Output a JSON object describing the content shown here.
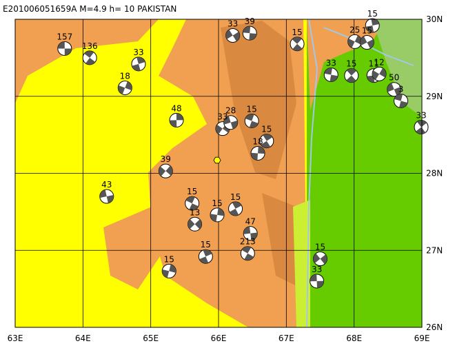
{
  "map": {
    "title": "E201006051659A  M=4.9  h= 10  PAKISTAN",
    "xlim": [
      63,
      69
    ],
    "ylim": [
      26,
      30
    ],
    "xticks": [
      {
        "value": 63,
        "label": "63E"
      },
      {
        "value": 64,
        "label": "64E"
      },
      {
        "value": 65,
        "label": "65E"
      },
      {
        "value": 66,
        "label": "66E"
      },
      {
        "value": 67,
        "label": "67E"
      },
      {
        "value": 68,
        "label": "68E"
      },
      {
        "value": 69,
        "label": "69E"
      }
    ],
    "yticks": [
      {
        "value": 26,
        "label": "26N"
      },
      {
        "value": 27,
        "label": "27N"
      },
      {
        "value": 28,
        "label": "28N"
      },
      {
        "value": 29,
        "label": "29N"
      },
      {
        "value": 30,
        "label": "30N"
      }
    ],
    "epicenter": {
      "lon": 65.98,
      "lat": 28.17
    },
    "events": [
      {
        "lon": 63.73,
        "lat": 29.62,
        "depth": 157
      },
      {
        "lon": 64.1,
        "lat": 29.5,
        "depth": 136
      },
      {
        "lon": 64.82,
        "lat": 29.42,
        "depth": 33
      },
      {
        "lon": 64.62,
        "lat": 29.11,
        "depth": 18
      },
      {
        "lon": 66.21,
        "lat": 29.79,
        "depth": 33
      },
      {
        "lon": 66.46,
        "lat": 29.82,
        "depth": 39
      },
      {
        "lon": 67.16,
        "lat": 29.68,
        "depth": 15
      },
      {
        "lon": 68.27,
        "lat": 29.92,
        "depth": 15
      },
      {
        "lon": 68.01,
        "lat": 29.71,
        "depth": 25
      },
      {
        "lon": 68.19,
        "lat": 29.7,
        "depth": 15
      },
      {
        "lon": 67.66,
        "lat": 29.28,
        "depth": 33
      },
      {
        "lon": 67.96,
        "lat": 29.27,
        "depth": 15
      },
      {
        "lon": 68.29,
        "lat": 29.27,
        "depth": 11
      },
      {
        "lon": 68.37,
        "lat": 29.29,
        "depth": 12
      },
      {
        "lon": 68.59,
        "lat": 29.09,
        "depth": 50
      },
      {
        "lon": 68.69,
        "lat": 28.94,
        "depth": 3
      },
      {
        "lon": 68.99,
        "lat": 28.6,
        "depth": 33
      },
      {
        "lon": 65.38,
        "lat": 28.69,
        "depth": 48
      },
      {
        "lon": 66.06,
        "lat": 28.58,
        "depth": 33
      },
      {
        "lon": 66.18,
        "lat": 28.66,
        "depth": 28
      },
      {
        "lon": 66.49,
        "lat": 28.68,
        "depth": 15
      },
      {
        "lon": 66.71,
        "lat": 28.42,
        "depth": 15
      },
      {
        "lon": 66.58,
        "lat": 28.26,
        "depth": 18
      },
      {
        "lon": 65.22,
        "lat": 28.03,
        "depth": 39
      },
      {
        "lon": 64.35,
        "lat": 27.7,
        "depth": 43
      },
      {
        "lon": 65.61,
        "lat": 27.61,
        "depth": 15
      },
      {
        "lon": 66.25,
        "lat": 27.54,
        "depth": 15
      },
      {
        "lon": 65.98,
        "lat": 27.46,
        "depth": 15
      },
      {
        "lon": 65.65,
        "lat": 27.34,
        "depth": 13
      },
      {
        "lon": 66.47,
        "lat": 27.22,
        "depth": 47
      },
      {
        "lon": 66.43,
        "lat": 26.96,
        "depth": 213
      },
      {
        "lon": 65.81,
        "lat": 26.92,
        "depth": 15
      },
      {
        "lon": 65.27,
        "lat": 26.73,
        "depth": 15
      },
      {
        "lon": 67.5,
        "lat": 26.89,
        "depth": 15
      },
      {
        "lon": 67.45,
        "lat": 26.6,
        "depth": 33
      }
    ]
  }
}
